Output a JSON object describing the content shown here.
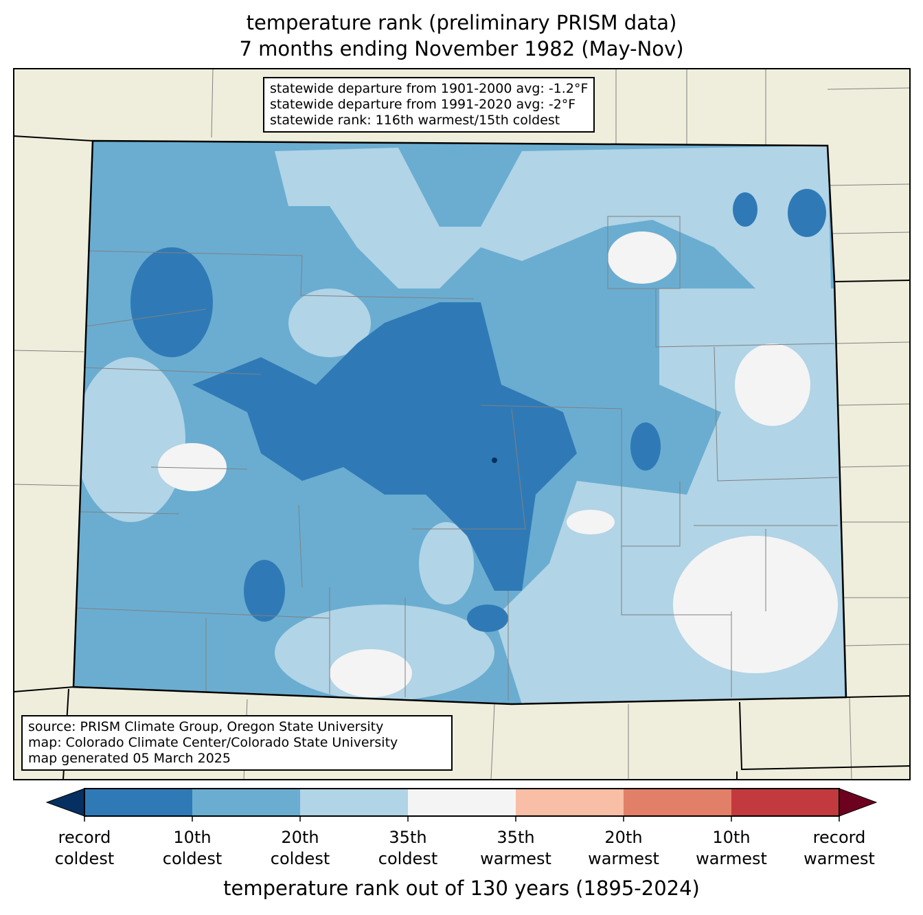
{
  "title": {
    "line1": "temperature rank (preliminary PRISM data)",
    "line2": "7 months ending November 1982 (May-Nov)"
  },
  "stats": {
    "line1": "statewide departure from 1901-2000 avg: -1.2°F",
    "line2": "statewide departure from 1991-2020 avg: -2°F",
    "line3": "statewide rank: 116th warmest/15th coldest"
  },
  "source": {
    "line1": "source: PRISM Climate Group, Oregon State University",
    "line2": "map: Colorado Climate Center/Colorado State University",
    "line3": "map generated 05 March 2025"
  },
  "colorbar": {
    "label": "temperature rank out of 130 years (1895-2024)",
    "colors": [
      "#053061",
      "#2f7ab6",
      "#6aadd1",
      "#b1d4e6",
      "#f4f4f4",
      "#f9bea6",
      "#e27f68",
      "#c23a3d",
      "#6c0120"
    ],
    "ticks": [
      {
        "l1": "record",
        "l2": "coldest"
      },
      {
        "l1": "10th",
        "l2": "coldest"
      },
      {
        "l1": "20th",
        "l2": "coldest"
      },
      {
        "l1": "35th",
        "l2": "coldest"
      },
      {
        "l1": "35th",
        "l2": "warmest"
      },
      {
        "l1": "20th",
        "l2": "warmest"
      },
      {
        "l1": "10th",
        "l2": "warmest"
      },
      {
        "l1": "record",
        "l2": "warmest"
      }
    ]
  },
  "map_colors": {
    "land": "#efeedc",
    "border": "#000000",
    "county": "#808080"
  }
}
